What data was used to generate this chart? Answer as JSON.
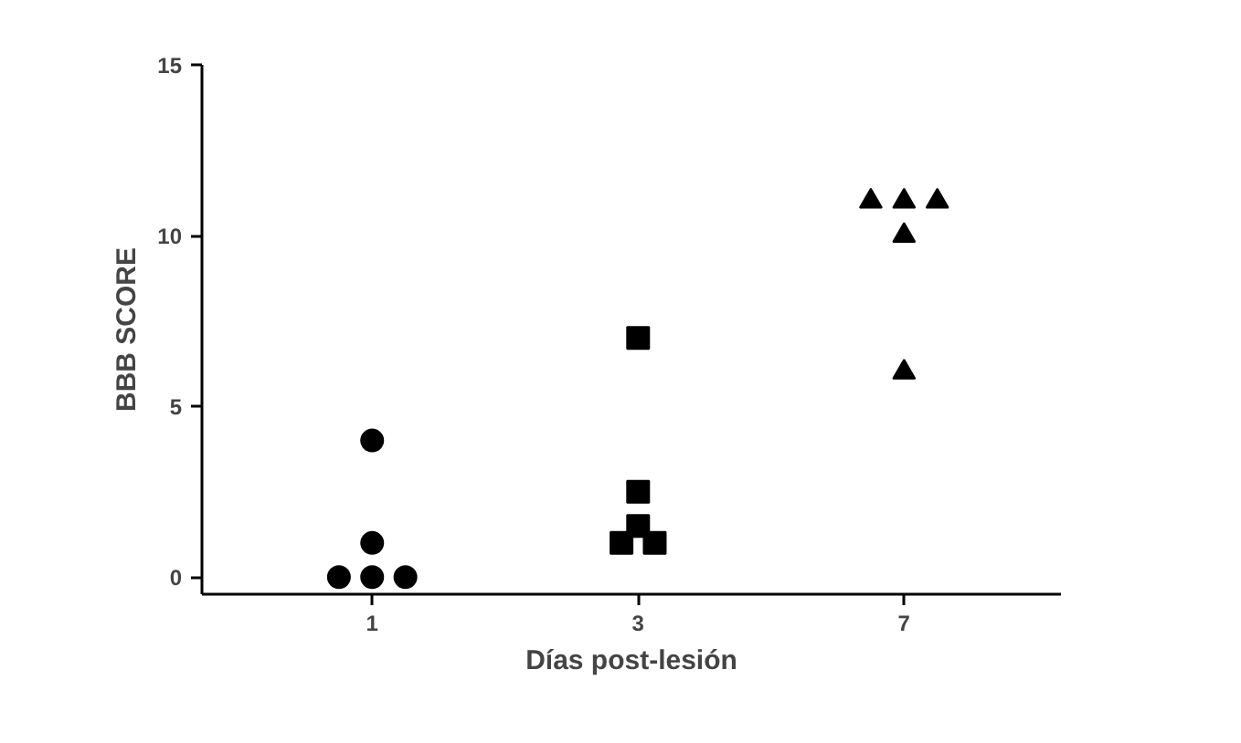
{
  "chart_data": {
    "type": "scatter",
    "xlabel": "Días post-lesión",
    "ylabel": "BBB SCORE",
    "categories": [
      "1",
      "3",
      "7"
    ],
    "ylim": [
      -0.5,
      15
    ],
    "yticks": [
      0,
      5,
      10,
      15
    ],
    "grid": false,
    "series": [
      {
        "marker": "circle",
        "color": "#000000",
        "x": [
          "1",
          "1",
          "1",
          "1",
          "1"
        ],
        "values": [
          4,
          1,
          0,
          0,
          0
        ]
      },
      {
        "marker": "square",
        "color": "#000000",
        "x": [
          "3",
          "3",
          "3",
          "3",
          "3"
        ],
        "values": [
          7,
          2.5,
          1.5,
          1,
          1
        ]
      },
      {
        "marker": "triangle",
        "color": "#000000",
        "x": [
          "7",
          "7",
          "7",
          "7",
          "7"
        ],
        "values": [
          11,
          11,
          11,
          10,
          6
        ]
      }
    ]
  }
}
